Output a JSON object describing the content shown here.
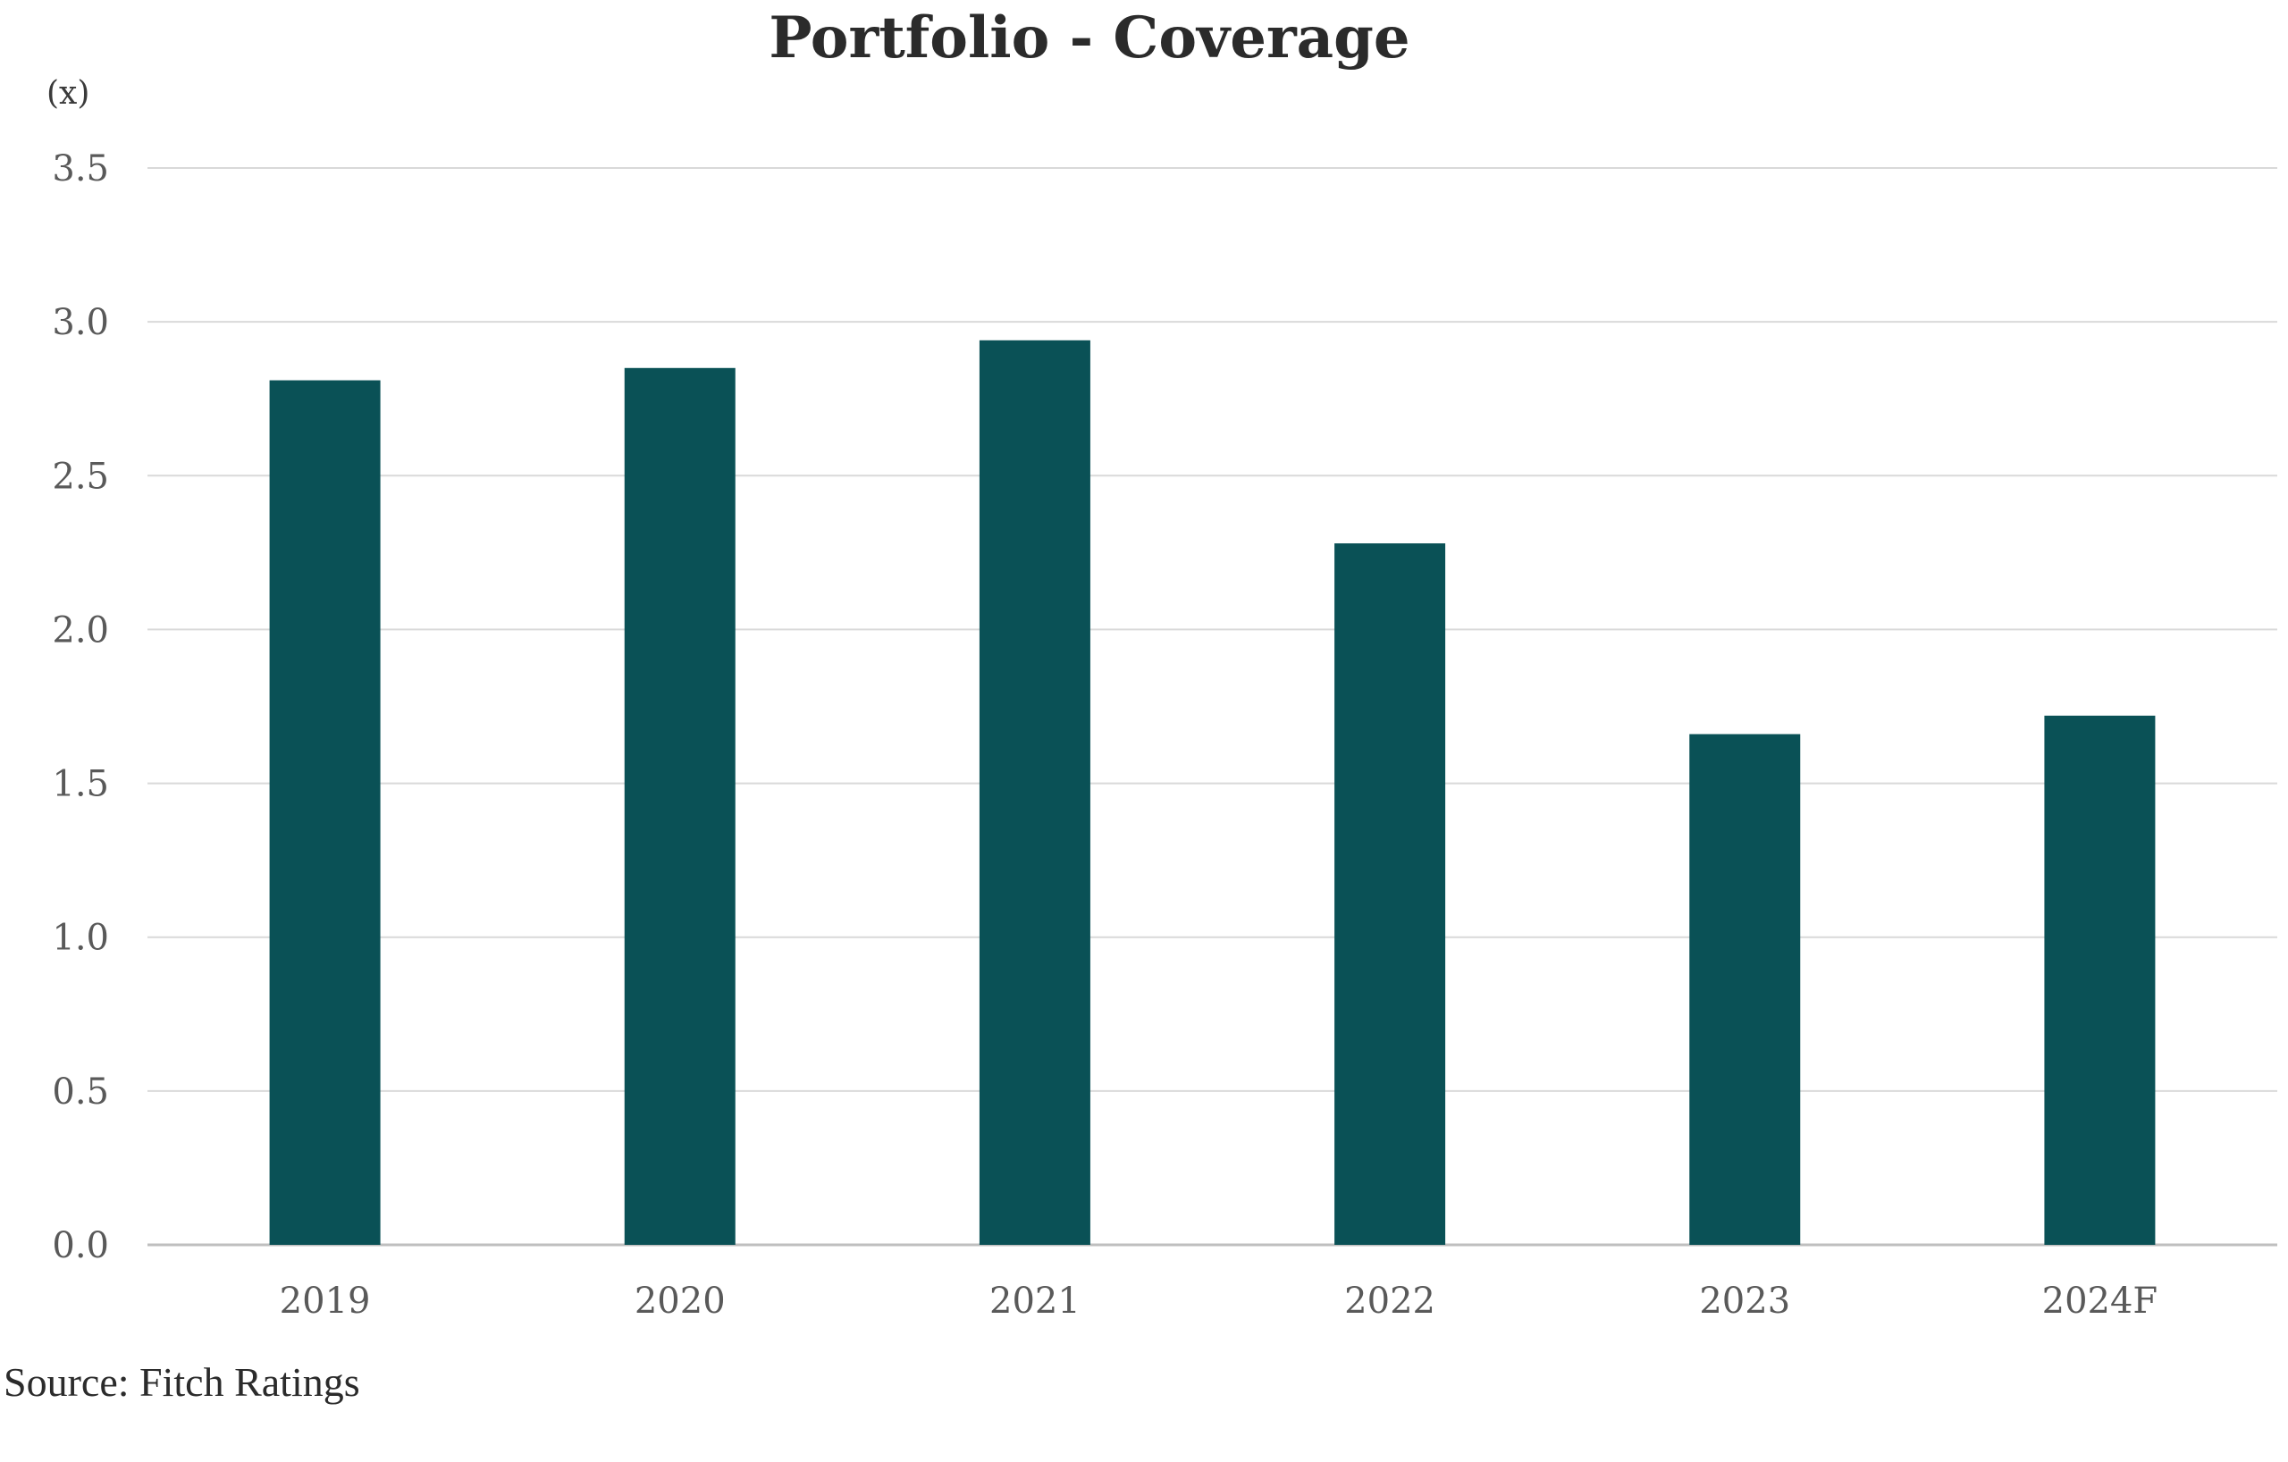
{
  "chart_data": {
    "type": "bar",
    "title": "Portfolio - Coverage",
    "ylabel": "(x)",
    "xlabel": "",
    "categories": [
      "2019",
      "2020",
      "2021",
      "2022",
      "2023",
      "2024F"
    ],
    "values": [
      2.81,
      2.85,
      2.94,
      2.28,
      1.66,
      1.72
    ],
    "ylim": [
      0,
      3.5
    ],
    "yticks": [
      "0.0",
      "0.5",
      "1.0",
      "1.5",
      "2.0",
      "2.5",
      "3.0",
      "3.5"
    ],
    "grid": true,
    "legend": "none",
    "colors": {
      "bar": "#0a5156",
      "grid": "#d9d9d9",
      "axis": "#bfbfbf"
    }
  },
  "source": "Source: Fitch Ratings"
}
